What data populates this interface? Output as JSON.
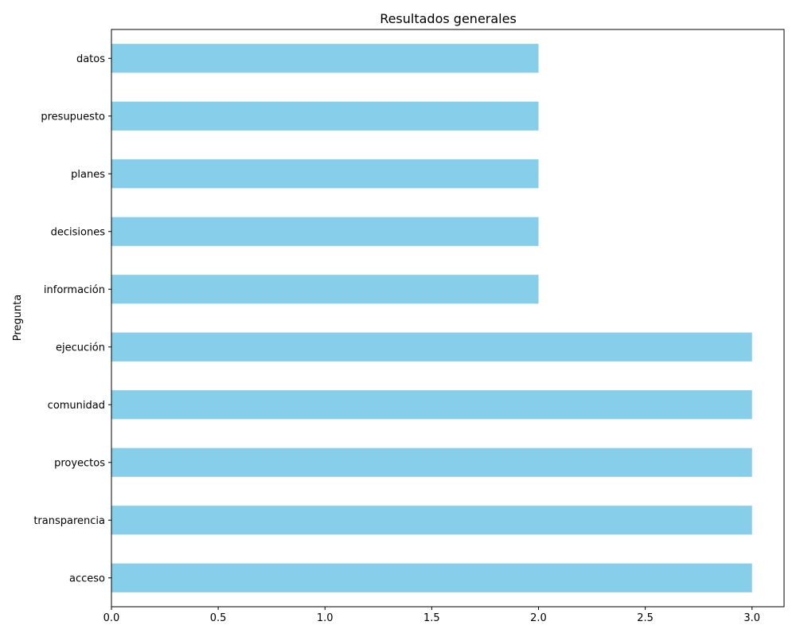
{
  "chart_data": {
    "type": "bar",
    "orientation": "horizontal",
    "title": "Resultados generales",
    "xlabel": "",
    "ylabel": "Pregunta",
    "categories": [
      "acceso",
      "transparencia",
      "proyectos",
      "comunidad",
      "ejecución",
      "información",
      "decisiones",
      "planes",
      "presupuesto",
      "datos"
    ],
    "values": [
      3,
      3,
      3,
      3,
      3,
      2,
      2,
      2,
      2,
      2
    ],
    "xlim": [
      0,
      3.15
    ],
    "xticks": [
      0.0,
      0.5,
      1.0,
      1.5,
      2.0,
      2.5,
      3.0
    ],
    "xtick_labels": [
      "0.0",
      "0.5",
      "1.0",
      "1.5",
      "2.0",
      "2.5",
      "3.0"
    ],
    "bar_color": "#87CEEB",
    "grid": false,
    "legend": "none"
  }
}
